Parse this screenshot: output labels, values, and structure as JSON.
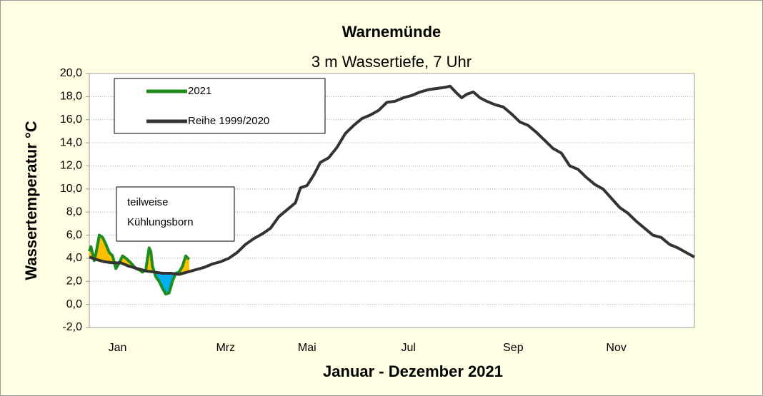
{
  "chart_data": {
    "type": "line",
    "title": "Warnemünde",
    "subtitle": "3 m Wassertiefe, 7 Uhr",
    "y_label": "Wassertemperatur °C",
    "x_label": "Januar - Dezember 2021",
    "annotation": "teilweise Kühlungsborn",
    "xlim": [
      1,
      365
    ],
    "xticks": [
      {
        "value": 18,
        "label": "Jan"
      },
      {
        "value": 83,
        "label": "Mrz"
      },
      {
        "value": 132,
        "label": "Mai"
      },
      {
        "value": 193,
        "label": "Jul"
      },
      {
        "value": 256,
        "label": "Sep"
      },
      {
        "value": 318,
        "label": "Nov"
      }
    ],
    "ylim": [
      -2,
      20
    ],
    "yticks": [
      {
        "value": -2,
        "label": "-2,0"
      },
      {
        "value": 0,
        "label": "0,0"
      },
      {
        "value": 2,
        "label": "2,0"
      },
      {
        "value": 4,
        "label": "4,0"
      },
      {
        "value": 6,
        "label": "6,0"
      },
      {
        "value": 8,
        "label": "8,0"
      },
      {
        "value": 10,
        "label": "10,0"
      },
      {
        "value": 12,
        "label": "12,0"
      },
      {
        "value": 14,
        "label": "14,0"
      },
      {
        "value": 16,
        "label": "16,0"
      },
      {
        "value": 18,
        "label": "18,0"
      },
      {
        "value": 20,
        "label": "20,0"
      }
    ],
    "grid": true,
    "above_color": "#ffc000",
    "below_color": "#00b0f0",
    "series": [
      {
        "name": "2021",
        "color": "#1e8c1e",
        "x": [
          1,
          2,
          4,
          5,
          7,
          9,
          11,
          13,
          15,
          17,
          19,
          21,
          23,
          26,
          29,
          31,
          33,
          35,
          36,
          37,
          38,
          39,
          41,
          43,
          45,
          47,
          49,
          51,
          53,
          55,
          57,
          59,
          61
        ],
        "values": [
          4.6,
          5.0,
          3.8,
          4.4,
          6.0,
          5.8,
          5.2,
          4.5,
          4.2,
          3.1,
          3.6,
          4.2,
          4.0,
          3.6,
          3.1,
          3.0,
          2.8,
          3.0,
          4.0,
          4.9,
          4.6,
          3.3,
          2.4,
          2.0,
          1.4,
          0.9,
          1.0,
          2.0,
          2.7,
          2.8,
          3.3,
          4.2,
          3.9
        ]
      },
      {
        "name": "Reihe 1999/2020",
        "color": "#333333",
        "x": [
          1,
          5,
          10,
          15,
          20,
          25,
          30,
          35,
          40,
          45,
          50,
          55,
          60,
          65,
          70,
          75,
          80,
          85,
          90,
          95,
          100,
          105,
          110,
          115,
          120,
          125,
          128,
          132,
          136,
          140,
          145,
          150,
          155,
          160,
          165,
          170,
          175,
          180,
          185,
          190,
          195,
          200,
          205,
          210,
          215,
          218,
          222,
          225,
          228,
          232,
          236,
          240,
          245,
          250,
          255,
          260,
          265,
          270,
          275,
          280,
          285,
          290,
          295,
          300,
          305,
          310,
          315,
          320,
          325,
          330,
          335,
          340,
          345,
          350,
          355,
          360,
          365
        ],
        "values": [
          4.1,
          3.9,
          3.7,
          3.6,
          3.6,
          3.3,
          3.1,
          2.9,
          2.8,
          2.7,
          2.7,
          2.6,
          2.8,
          3.0,
          3.2,
          3.5,
          3.7,
          4.0,
          4.5,
          5.2,
          5.7,
          6.1,
          6.6,
          7.6,
          8.2,
          8.8,
          10.1,
          10.3,
          11.2,
          12.3,
          12.7,
          13.6,
          14.8,
          15.5,
          16.1,
          16.4,
          16.8,
          17.5,
          17.6,
          17.9,
          18.1,
          18.4,
          18.6,
          18.7,
          18.8,
          18.9,
          18.3,
          17.9,
          18.2,
          18.4,
          17.9,
          17.6,
          17.3,
          17.1,
          16.5,
          15.8,
          15.5,
          14.9,
          14.2,
          13.5,
          13.1,
          12.0,
          11.7,
          11.0,
          10.4,
          10.0,
          9.2,
          8.4,
          7.9,
          7.2,
          6.6,
          6.0,
          5.8,
          5.2,
          4.9,
          4.5,
          4.1
        ]
      }
    ]
  }
}
